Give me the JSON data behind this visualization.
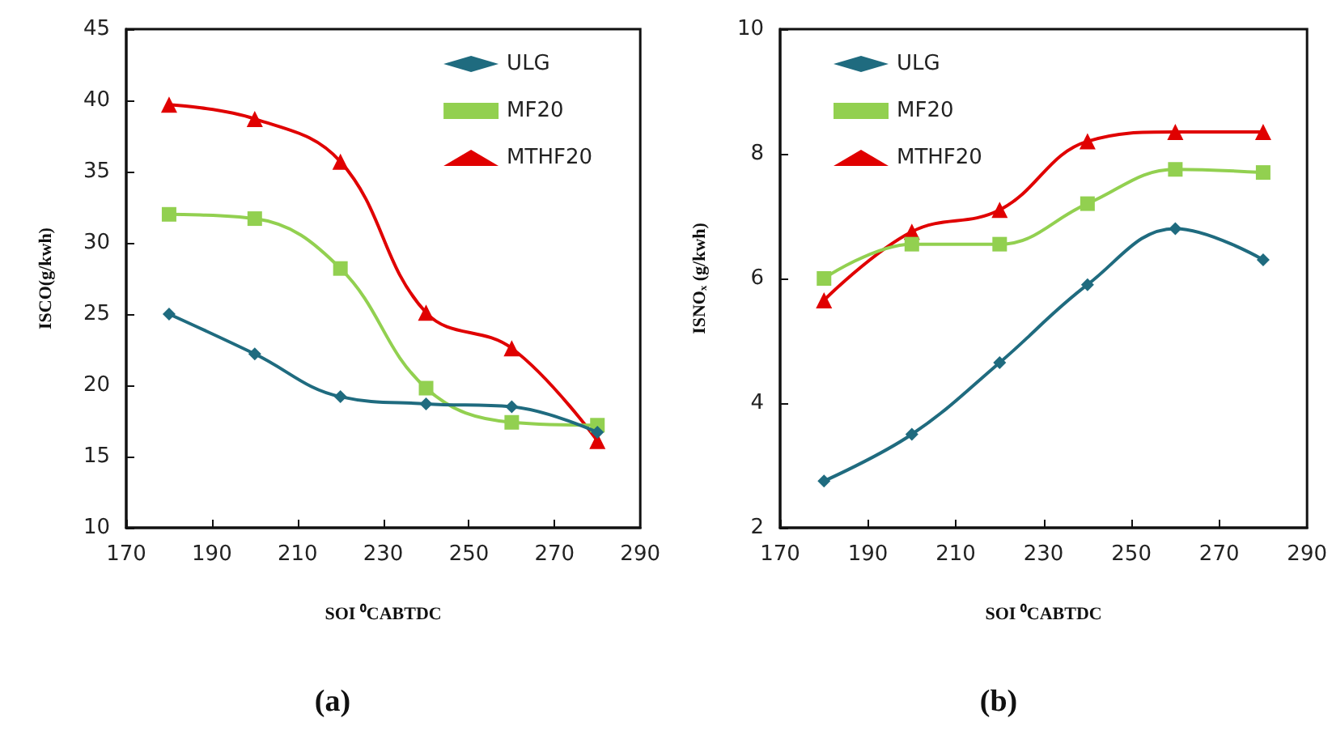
{
  "chart_data": [
    {
      "type": "line",
      "title": "(a)",
      "xlabel": "SOI ⁰CABTDC",
      "ylabel": "ISCO(g/kwh)",
      "x": [
        180,
        200,
        220,
        240,
        260,
        280
      ],
      "series": [
        {
          "name": "ULG",
          "color": "#1f6b7f",
          "marker": "diamond",
          "values": [
            25,
            22.2,
            19.2,
            18.7,
            18.5,
            16.7
          ]
        },
        {
          "name": "MF20",
          "color": "#92d050",
          "marker": "square",
          "values": [
            32,
            31.7,
            28.2,
            19.8,
            17.4,
            17.2
          ]
        },
        {
          "name": "MTHF20",
          "color": "#e00000",
          "marker": "triangle",
          "values": [
            39.7,
            38.7,
            35.7,
            25.1,
            22.6,
            16.1
          ]
        }
      ],
      "xlim": [
        170,
        290
      ],
      "xticks": [
        170,
        190,
        210,
        230,
        250,
        270,
        290
      ],
      "ylim": [
        10,
        45
      ],
      "yticks": [
        10,
        15,
        20,
        25,
        30,
        35,
        40,
        45
      ],
      "grid": false,
      "legend": "top right",
      "line_style": "solid"
    },
    {
      "type": "line",
      "title": "(b)",
      "xlabel": "SOI ⁰CABTDC",
      "ylabel": "ISNOₓ (g/kwh)",
      "x": [
        180,
        200,
        220,
        240,
        260,
        280
      ],
      "series": [
        {
          "name": "ULG",
          "color": "#1f6b7f",
          "marker": "diamond",
          "values": [
            2.75,
            3.5,
            4.65,
            5.9,
            6.8,
            6.3
          ]
        },
        {
          "name": "MF20",
          "color": "#92d050",
          "marker": "square",
          "values": [
            6.0,
            6.55,
            6.55,
            7.2,
            7.75,
            7.7
          ]
        },
        {
          "name": "MTHF20",
          "color": "#e00000",
          "marker": "triangle",
          "values": [
            5.65,
            6.75,
            7.1,
            8.2,
            8.35,
            8.35
          ]
        }
      ],
      "xlim": [
        170,
        290
      ],
      "xticks": [
        170,
        190,
        210,
        230,
        250,
        270,
        290
      ],
      "ylim": [
        2,
        10
      ],
      "yticks": [
        2,
        4,
        6,
        8,
        10
      ],
      "grid": false,
      "legend": "top left",
      "line_style": "solid"
    }
  ]
}
